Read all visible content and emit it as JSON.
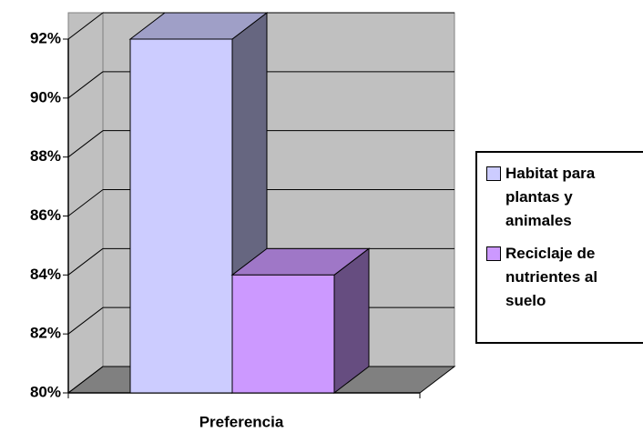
{
  "chart_data": {
    "type": "bar3d",
    "categories": [
      "Preferencia"
    ],
    "series": [
      {
        "name": "Habitat para plantas y animales",
        "color": "#ccccff",
        "values": [
          92
        ]
      },
      {
        "name": "Reciclaje de nutrientes al suelo",
        "color": "#cc99ff",
        "values": [
          84
        ]
      }
    ],
    "ylim": [
      80,
      92
    ],
    "yticks": [
      {
        "value": 80,
        "label": "80%"
      },
      {
        "value": 82,
        "label": "82%"
      },
      {
        "value": 84,
        "label": "84%"
      },
      {
        "value": 86,
        "label": "86%"
      },
      {
        "value": 88,
        "label": "88%"
      },
      {
        "value": 90,
        "label": "90%"
      },
      {
        "value": 92,
        "label": "92%"
      }
    ],
    "grid": true,
    "legend": "right"
  }
}
